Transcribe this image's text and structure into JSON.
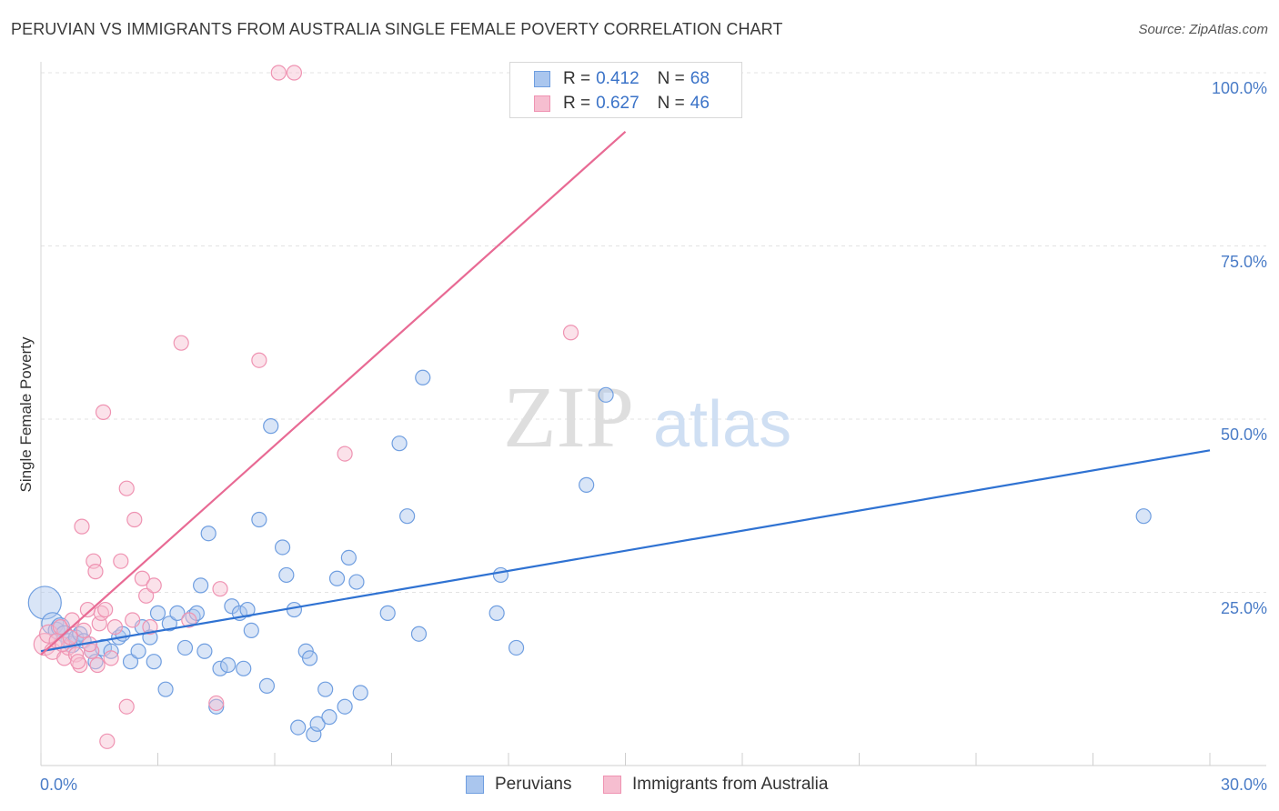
{
  "title": "PERUVIAN VS IMMIGRANTS FROM AUSTRALIA SINGLE FEMALE POVERTY CORRELATION CHART",
  "source": "Source: ZipAtlas.com",
  "watermark": {
    "zip": "ZIP",
    "atlas": "atlas"
  },
  "legend_top": {
    "rows": [
      {
        "r_label": "R =",
        "r_value": "0.412",
        "n_label": "N =",
        "n_value": "68",
        "color": "#aac6ee",
        "border": "#6f9ee0"
      },
      {
        "r_label": "R =",
        "r_value": "0.627",
        "n_label": "N =",
        "n_value": "46",
        "color": "#f6bed0",
        "border": "#ef93b2"
      }
    ]
  },
  "chart_data": {
    "type": "scatter",
    "ylabel": "Single Female Poverty",
    "xlim": [
      0,
      30
    ],
    "ylim": [
      0,
      100
    ],
    "x_tick_labels": [
      "0.0%",
      "30.0%"
    ],
    "y_ticks": [
      {
        "value": 100,
        "label": "100.0%"
      },
      {
        "value": 75,
        "label": "75.0%"
      },
      {
        "value": 50,
        "label": "50.0%"
      },
      {
        "value": 25,
        "label": "25.0%"
      }
    ],
    "grid": true,
    "legend_position": "bottom",
    "series": [
      {
        "name": "Peruvians",
        "color": "#aac6ee",
        "stroke": "#6f9ee0",
        "line_color": "#2f72d2",
        "trend": {
          "x": [
            0,
            30
          ],
          "y": [
            16.5,
            45.5
          ]
        },
        "points": [
          [
            0.1,
            23.5,
            18
          ],
          [
            0.3,
            20.5,
            12
          ],
          [
            0.4,
            19.5,
            9
          ],
          [
            0.5,
            20.0,
            10
          ],
          [
            0.6,
            19.0,
            9
          ],
          [
            0.7,
            18.0,
            8
          ],
          [
            0.8,
            17.5,
            9
          ],
          [
            0.9,
            18.5,
            8
          ],
          [
            1.0,
            19.0,
            8
          ],
          [
            1.1,
            18.0,
            8
          ],
          [
            1.3,
            16.5,
            8
          ],
          [
            1.4,
            15.0,
            8
          ],
          [
            1.6,
            17.0,
            9
          ],
          [
            1.8,
            16.5,
            8
          ],
          [
            2.0,
            18.5,
            8
          ],
          [
            2.1,
            19.0,
            8
          ],
          [
            2.3,
            15.0,
            8
          ],
          [
            2.5,
            16.5,
            8
          ],
          [
            2.6,
            20.0,
            8
          ],
          [
            2.8,
            18.5,
            8
          ],
          [
            2.9,
            15.0,
            8
          ],
          [
            3.0,
            22.0,
            8
          ],
          [
            3.2,
            11.0,
            8
          ],
          [
            3.3,
            20.5,
            8
          ],
          [
            3.5,
            22.0,
            8
          ],
          [
            3.7,
            17.0,
            8
          ],
          [
            3.9,
            21.5,
            8
          ],
          [
            4.0,
            22.0,
            8
          ],
          [
            4.1,
            26.0,
            8
          ],
          [
            4.2,
            16.5,
            8
          ],
          [
            4.3,
            33.5,
            8
          ],
          [
            4.5,
            8.5,
            8
          ],
          [
            4.6,
            14.0,
            8
          ],
          [
            4.8,
            14.5,
            8
          ],
          [
            4.9,
            23.0,
            8
          ],
          [
            5.1,
            22.0,
            8
          ],
          [
            5.2,
            14.0,
            8
          ],
          [
            5.3,
            22.5,
            8
          ],
          [
            5.4,
            19.5,
            8
          ],
          [
            5.6,
            35.5,
            8
          ],
          [
            5.8,
            11.5,
            8
          ],
          [
            5.9,
            49.0,
            8
          ],
          [
            6.2,
            31.5,
            8
          ],
          [
            6.3,
            27.5,
            8
          ],
          [
            6.5,
            22.5,
            8
          ],
          [
            6.6,
            5.5,
            8
          ],
          [
            6.8,
            16.5,
            8
          ],
          [
            6.9,
            15.5,
            8
          ],
          [
            7.0,
            4.5,
            8
          ],
          [
            7.1,
            6.0,
            8
          ],
          [
            7.3,
            11.0,
            8
          ],
          [
            7.4,
            7.0,
            8
          ],
          [
            7.6,
            27.0,
            8
          ],
          [
            7.8,
            8.5,
            8
          ],
          [
            7.9,
            30.0,
            8
          ],
          [
            8.1,
            26.5,
            8
          ],
          [
            8.2,
            10.5,
            8
          ],
          [
            8.9,
            22.0,
            8
          ],
          [
            9.2,
            46.5,
            8
          ],
          [
            9.4,
            36.0,
            8
          ],
          [
            9.7,
            19.0,
            8
          ],
          [
            9.8,
            56.0,
            8
          ],
          [
            11.7,
            22.0,
            8
          ],
          [
            11.8,
            27.5,
            8
          ],
          [
            12.2,
            17.0,
            8
          ],
          [
            14.0,
            40.5,
            8
          ],
          [
            14.5,
            53.5,
            8
          ],
          [
            28.3,
            36.0,
            8
          ]
        ]
      },
      {
        "name": "Immigrants from Australia",
        "color": "#f6bed0",
        "stroke": "#ef93b2",
        "line_color": "#e86a94",
        "trend": {
          "x": [
            0,
            15
          ],
          "y": [
            16.0,
            91.5
          ]
        },
        "points": [
          [
            0.1,
            17.5,
            12
          ],
          [
            0.2,
            19.0,
            10
          ],
          [
            0.3,
            16.5,
            9
          ],
          [
            0.4,
            18.0,
            8
          ],
          [
            0.5,
            20.0,
            8
          ],
          [
            0.6,
            15.5,
            8
          ],
          [
            0.7,
            17.0,
            8
          ],
          [
            0.8,
            21.0,
            8
          ],
          [
            0.9,
            16.0,
            8
          ],
          [
            1.0,
            14.5,
            8
          ],
          [
            1.05,
            34.5,
            8
          ],
          [
            1.1,
            19.5,
            8
          ],
          [
            1.2,
            22.5,
            8
          ],
          [
            1.3,
            16.5,
            8
          ],
          [
            1.35,
            29.5,
            8
          ],
          [
            1.4,
            28.0,
            8
          ],
          [
            1.5,
            20.5,
            8
          ],
          [
            1.55,
            22.0,
            8
          ],
          [
            1.6,
            51.0,
            8
          ],
          [
            1.7,
            3.5,
            8
          ],
          [
            1.8,
            15.5,
            8
          ],
          [
            1.9,
            20.0,
            8
          ],
          [
            2.05,
            29.5,
            8
          ],
          [
            2.2,
            40.0,
            8
          ],
          [
            2.35,
            21.0,
            8
          ],
          [
            2.4,
            35.5,
            8
          ],
          [
            2.6,
            27.0,
            8
          ],
          [
            2.7,
            24.5,
            8
          ],
          [
            2.8,
            20.0,
            8
          ],
          [
            2.9,
            26.0,
            8
          ],
          [
            3.6,
            61.0,
            8
          ],
          [
            3.8,
            21.0,
            8
          ],
          [
            4.5,
            9.0,
            8
          ],
          [
            4.6,
            25.5,
            8
          ],
          [
            5.6,
            58.5,
            8
          ],
          [
            6.1,
            100.0,
            8
          ],
          [
            6.5,
            100.0,
            8
          ],
          [
            7.8,
            45.0,
            8
          ],
          [
            13.6,
            62.5,
            8
          ],
          [
            2.2,
            8.5,
            8
          ],
          [
            0.95,
            15.0,
            8
          ],
          [
            1.25,
            17.5,
            8
          ],
          [
            1.45,
            14.5,
            8
          ],
          [
            0.55,
            17.5,
            8
          ],
          [
            0.75,
            18.5,
            8
          ],
          [
            1.65,
            22.5,
            8
          ]
        ]
      }
    ]
  }
}
